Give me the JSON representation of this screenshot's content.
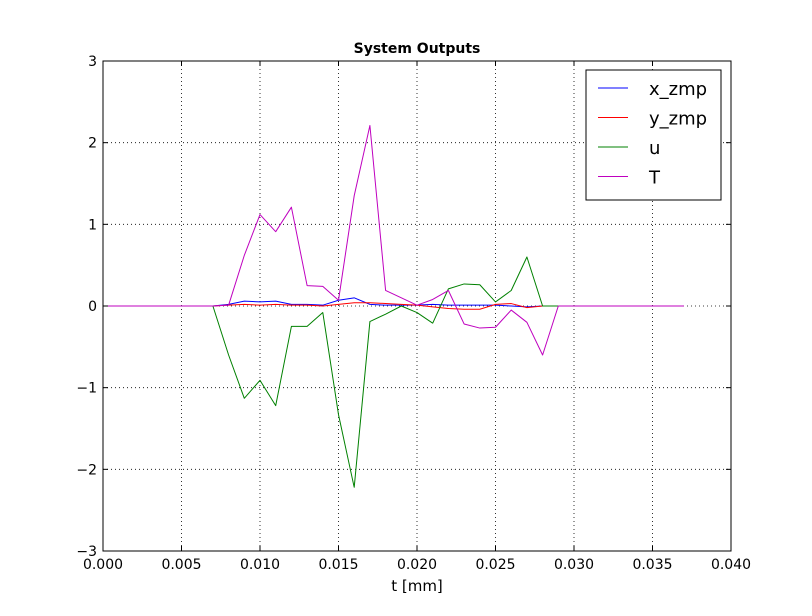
{
  "chart_data": {
    "type": "line",
    "title": "System Outputs",
    "xlabel": "t [mm]",
    "ylabel": "",
    "xlim": [
      0.0,
      0.04
    ],
    "ylim": [
      -3,
      3
    ],
    "xticks": [
      0.0,
      0.005,
      0.01,
      0.015,
      0.02,
      0.025,
      0.03,
      0.035,
      0.04
    ],
    "xtick_labels": [
      "0.000",
      "0.005",
      "0.010",
      "0.015",
      "0.020",
      "0.025",
      "0.030",
      "0.035",
      "0.040"
    ],
    "yticks": [
      -3,
      -2,
      -1,
      0,
      1,
      2,
      3
    ],
    "ytick_labels": [
      "−3",
      "−2",
      "−1",
      "0",
      "1",
      "2",
      "3"
    ],
    "grid": true,
    "legend_position": "top-right",
    "x": [
      0.0,
      0.001,
      0.002,
      0.003,
      0.004,
      0.005,
      0.006,
      0.007,
      0.008,
      0.009,
      0.01,
      0.011,
      0.012,
      0.013,
      0.014,
      0.015,
      0.016,
      0.017,
      0.018,
      0.019,
      0.02,
      0.021,
      0.022,
      0.023,
      0.024,
      0.025,
      0.026,
      0.027,
      0.028,
      0.029,
      0.03,
      0.031,
      0.032,
      0.033,
      0.034,
      0.035,
      0.036,
      0.037
    ],
    "series": [
      {
        "name": "x_zmp",
        "color": "#0000ff",
        "values": [
          0,
          0,
          0,
          0,
          0,
          0,
          0,
          0,
          0.02,
          0.06,
          0.05,
          0.06,
          0.02,
          0.02,
          0.01,
          0.07,
          0.1,
          0.02,
          0.01,
          0.01,
          0.01,
          0.02,
          0.01,
          0.01,
          0.01,
          0.01,
          0.0,
          -0.01,
          0.0,
          0.0,
          0,
          0,
          0,
          0,
          0,
          0,
          0,
          0
        ]
      },
      {
        "name": "y_zmp",
        "color": "#ff0000",
        "values": [
          0,
          0,
          0,
          0,
          0,
          0,
          0,
          0,
          0.01,
          0.02,
          0.01,
          0.02,
          0.01,
          0.01,
          0.0,
          0.02,
          0.04,
          0.04,
          0.03,
          0.02,
          0.01,
          -0.01,
          -0.03,
          -0.04,
          -0.04,
          0.02,
          0.03,
          -0.02,
          0.0,
          0.0,
          0,
          0,
          0,
          0,
          0,
          0,
          0,
          0
        ]
      },
      {
        "name": "u",
        "color": "#008000",
        "values": [
          0,
          0,
          0,
          0,
          0,
          0,
          0,
          0,
          -0.6,
          -1.13,
          -0.91,
          -1.22,
          -0.25,
          -0.25,
          -0.08,
          -1.33,
          -2.22,
          -0.19,
          -0.1,
          0.0,
          -0.08,
          -0.21,
          0.21,
          0.27,
          0.26,
          0.05,
          0.19,
          0.6,
          0.0,
          0.0,
          0,
          0,
          0,
          0,
          0,
          0,
          0,
          0
        ]
      },
      {
        "name": "T",
        "color": "#bf00bf",
        "values": [
          0,
          0,
          0,
          0,
          0,
          0,
          0,
          0,
          0.01,
          0.62,
          1.12,
          0.91,
          1.21,
          0.25,
          0.24,
          0.07,
          1.35,
          2.21,
          0.19,
          0.1,
          0.01,
          0.08,
          0.19,
          -0.22,
          -0.27,
          -0.26,
          -0.05,
          -0.2,
          -0.6,
          0.0,
          0,
          0,
          0,
          0,
          0,
          0,
          0,
          0
        ]
      }
    ]
  }
}
